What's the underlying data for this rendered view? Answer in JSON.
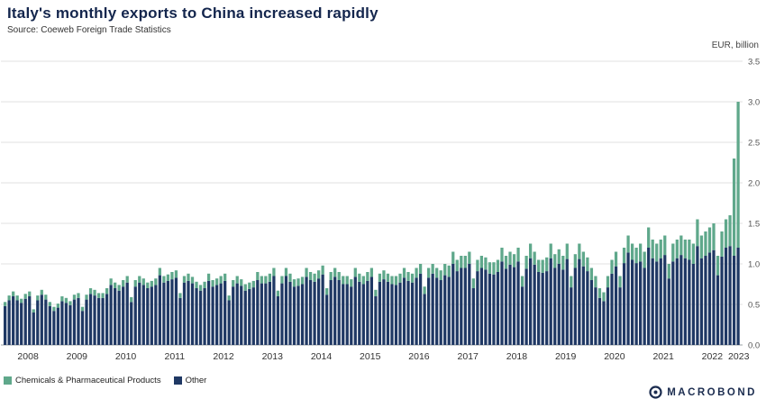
{
  "header": {
    "title": "Italy's monthly exports to China increased rapidly",
    "source": "Source: Coeweb Foreign Trade Statistics"
  },
  "axis": {
    "unit_label": "EUR, billion"
  },
  "footer": {
    "brand": "MACROBOND"
  },
  "chart_data": {
    "type": "bar",
    "stacked": true,
    "title": "Italy's monthly exports to China increased rapidly",
    "ylabel": "EUR, billion",
    "ylim": [
      0,
      3.5
    ],
    "ytick_step": 0.5,
    "grid": true,
    "legend_position": "bottom-left",
    "series": [
      {
        "name": "Chemicals & Pharmaceutical Products",
        "color": "#5fa88b"
      },
      {
        "name": "Other",
        "color": "#1f3864"
      }
    ],
    "years": [
      {
        "year": 2008,
        "other": [
          0.48,
          0.55,
          0.6,
          0.55,
          0.52,
          0.57,
          0.6,
          0.4,
          0.55,
          0.62,
          0.56,
          0.48
        ],
        "chem": [
          0.05,
          0.06,
          0.06,
          0.06,
          0.05,
          0.06,
          0.06,
          0.04,
          0.06,
          0.06,
          0.06,
          0.05
        ]
      },
      {
        "year": 2009,
        "other": [
          0.42,
          0.46,
          0.54,
          0.52,
          0.49,
          0.56,
          0.58,
          0.42,
          0.56,
          0.63,
          0.61,
          0.58
        ],
        "chem": [
          0.05,
          0.05,
          0.06,
          0.06,
          0.05,
          0.06,
          0.06,
          0.05,
          0.06,
          0.07,
          0.07,
          0.06
        ]
      },
      {
        "year": 2010,
        "other": [
          0.58,
          0.63,
          0.74,
          0.7,
          0.67,
          0.72,
          0.77,
          0.53,
          0.72,
          0.77,
          0.74,
          0.7
        ],
        "chem": [
          0.06,
          0.07,
          0.08,
          0.07,
          0.07,
          0.08,
          0.08,
          0.06,
          0.08,
          0.08,
          0.08,
          0.07
        ]
      },
      {
        "year": 2011,
        "other": [
          0.72,
          0.74,
          0.86,
          0.77,
          0.79,
          0.81,
          0.83,
          0.58,
          0.77,
          0.79,
          0.76,
          0.7
        ],
        "chem": [
          0.07,
          0.08,
          0.09,
          0.08,
          0.08,
          0.09,
          0.09,
          0.06,
          0.08,
          0.09,
          0.08,
          0.08
        ]
      },
      {
        "year": 2012,
        "other": [
          0.67,
          0.7,
          0.79,
          0.72,
          0.74,
          0.76,
          0.79,
          0.55,
          0.72,
          0.76,
          0.73,
          0.67
        ],
        "chem": [
          0.07,
          0.08,
          0.09,
          0.08,
          0.08,
          0.09,
          0.09,
          0.06,
          0.08,
          0.09,
          0.08,
          0.08
        ]
      },
      {
        "year": 2013,
        "other": [
          0.69,
          0.71,
          0.8,
          0.76,
          0.76,
          0.78,
          0.85,
          0.6,
          0.76,
          0.85,
          0.78,
          0.72
        ],
        "chem": [
          0.08,
          0.08,
          0.1,
          0.09,
          0.09,
          0.1,
          0.1,
          0.07,
          0.09,
          0.1,
          0.1,
          0.09
        ]
      },
      {
        "year": 2014,
        "other": [
          0.73,
          0.75,
          0.84,
          0.8,
          0.78,
          0.82,
          0.87,
          0.62,
          0.8,
          0.84,
          0.8,
          0.75
        ],
        "chem": [
          0.09,
          0.09,
          0.11,
          0.1,
          0.1,
          0.1,
          0.11,
          0.08,
          0.1,
          0.11,
          0.1,
          0.1
        ]
      },
      {
        "year": 2015,
        "other": [
          0.75,
          0.72,
          0.84,
          0.78,
          0.75,
          0.79,
          0.84,
          0.6,
          0.78,
          0.81,
          0.78,
          0.75
        ],
        "chem": [
          0.1,
          0.09,
          0.11,
          0.1,
          0.1,
          0.11,
          0.11,
          0.08,
          0.1,
          0.11,
          0.1,
          0.1
        ]
      },
      {
        "year": 2016,
        "other": [
          0.74,
          0.77,
          0.83,
          0.79,
          0.77,
          0.83,
          0.88,
          0.63,
          0.83,
          0.88,
          0.83,
          0.8
        ],
        "chem": [
          0.11,
          0.11,
          0.12,
          0.11,
          0.11,
          0.12,
          0.12,
          0.09,
          0.12,
          0.12,
          0.12,
          0.12
        ]
      },
      {
        "year": 2017,
        "other": [
          0.86,
          0.84,
          1.0,
          0.91,
          0.95,
          0.95,
          1.0,
          0.7,
          0.91,
          0.95,
          0.93,
          0.88
        ],
        "chem": [
          0.14,
          0.14,
          0.15,
          0.14,
          0.15,
          0.15,
          0.15,
          0.12,
          0.14,
          0.15,
          0.15,
          0.14
        ]
      },
      {
        "year": 2018,
        "other": [
          0.87,
          0.9,
          1.03,
          0.94,
          0.99,
          0.96,
          1.03,
          0.72,
          0.94,
          1.07,
          0.99,
          0.9
        ],
        "chem": [
          0.15,
          0.15,
          0.17,
          0.16,
          0.16,
          0.16,
          0.17,
          0.13,
          0.16,
          0.18,
          0.16,
          0.15
        ]
      },
      {
        "year": 2019,
        "other": [
          0.89,
          0.91,
          1.07,
          0.95,
          1.0,
          0.93,
          1.06,
          0.71,
          0.95,
          1.06,
          0.97,
          0.91
        ],
        "chem": [
          0.16,
          0.17,
          0.18,
          0.17,
          0.18,
          0.17,
          0.19,
          0.14,
          0.17,
          0.19,
          0.18,
          0.17
        ]
      },
      {
        "year": 2020,
        "other": [
          0.8,
          0.71,
          0.58,
          0.54,
          0.71,
          0.88,
          0.97,
          0.71,
          1.01,
          1.14,
          1.05,
          1.01
        ],
        "chem": [
          0.15,
          0.14,
          0.12,
          0.11,
          0.14,
          0.17,
          0.18,
          0.14,
          0.19,
          0.21,
          0.2,
          0.19
        ]
      },
      {
        "year": 2021,
        "other": [
          1.03,
          0.95,
          1.2,
          1.07,
          1.03,
          1.07,
          1.11,
          0.82,
          1.03,
          1.07,
          1.11,
          1.07
        ],
        "chem": [
          0.22,
          0.2,
          0.25,
          0.23,
          0.22,
          0.23,
          0.24,
          0.18,
          0.22,
          0.23,
          0.24,
          0.23
        ]
      },
      {
        "year": 2022,
        "other": [
          1.05,
          1.0,
          1.22,
          1.07,
          1.1,
          1.14,
          1.17,
          0.86,
          1.09,
          1.2,
          1.22,
          1.1
        ],
        "chem": [
          0.25,
          0.25,
          0.33,
          0.28,
          0.3,
          0.31,
          0.33,
          0.24,
          0.31,
          0.35,
          0.38,
          1.2
        ]
      },
      {
        "year": 2023,
        "other": [
          1.2
        ],
        "chem": [
          1.8
        ]
      }
    ]
  }
}
